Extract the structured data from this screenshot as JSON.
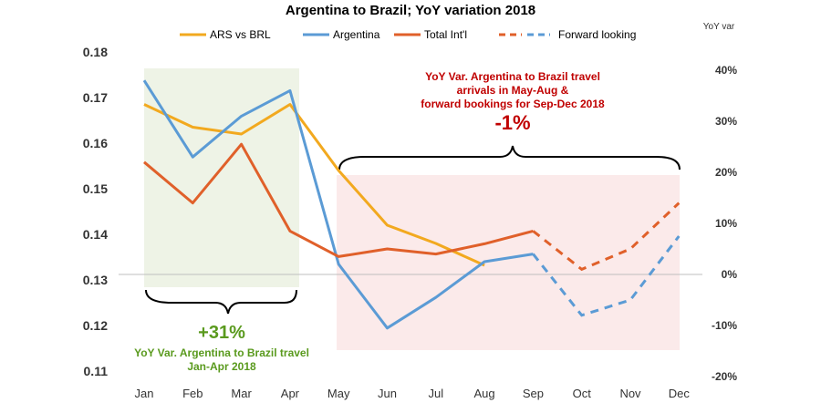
{
  "chart_data": {
    "type": "line",
    "title": "Argentina to Brazil; YoY variation 2018",
    "categories": [
      "Jan",
      "Feb",
      "Mar",
      "Apr",
      "May",
      "Jun",
      "Jul",
      "Aug",
      "Sep",
      "Oct",
      "Nov",
      "Dec"
    ],
    "y_left": {
      "ylim": [
        0.11,
        0.18
      ],
      "ticks": [
        "0.18",
        "0.17",
        "0.16",
        "0.15",
        "0.14",
        "0.13",
        "0.12",
        "0.11"
      ]
    },
    "y_right": {
      "label": "YoY var",
      "ylim": [
        -0.2,
        0.4
      ],
      "ticks": [
        "40%",
        "30%",
        "20%",
        "10%",
        "0%",
        "-10%",
        "-20%"
      ]
    },
    "legend": {
      "position": "top",
      "forward_label": "Forward looking"
    },
    "series": [
      {
        "name": "ARS vs BRL",
        "axis": "left",
        "color": "#f2a91f",
        "values": [
          0.1685,
          0.1635,
          0.162,
          0.1685,
          0.154,
          0.142,
          0.138,
          0.1332,
          null,
          null,
          null,
          null
        ]
      },
      {
        "name": "Argentina",
        "axis": "right",
        "color": "#5b9bd5",
        "values": [
          0.38,
          0.23,
          0.31,
          0.36,
          0.02,
          -0.105,
          -0.045,
          0.025,
          0.04,
          null,
          null,
          null
        ],
        "forward_values": [
          null,
          null,
          null,
          null,
          null,
          null,
          null,
          null,
          0.04,
          -0.08,
          -0.05,
          0.075
        ]
      },
      {
        "name": "Total Int'l",
        "axis": "right",
        "color": "#e0602a",
        "values": [
          0.22,
          0.14,
          0.255,
          0.085,
          0.035,
          0.05,
          0.04,
          0.06,
          0.085,
          null,
          null,
          null
        ],
        "forward_values": [
          null,
          null,
          null,
          null,
          null,
          null,
          null,
          null,
          0.085,
          0.01,
          0.05,
          0.14
        ]
      }
    ],
    "annotations": {
      "left_box": {
        "big": "+31%",
        "line1": "YoY Var. Argentina to Brazil travel",
        "line2": "Jan-Apr 2018"
      },
      "right_box": {
        "line1": "YoY Var. Argentina to Brazil travel",
        "line2": "arrivals in May-Aug &",
        "line3": "forward bookings for Sep-Dec 2018",
        "big": "-1%"
      }
    }
  }
}
